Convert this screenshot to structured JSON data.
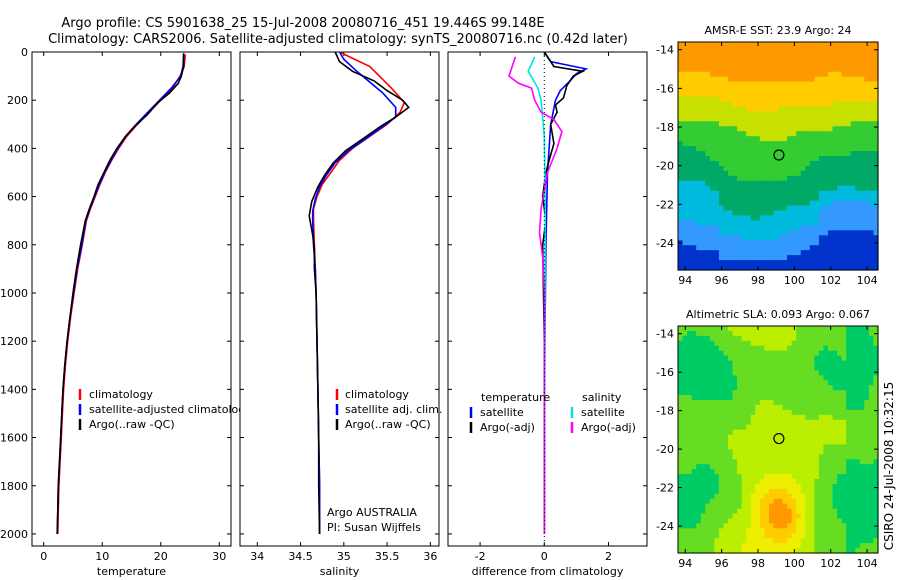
{
  "title_line1": "Argo profile: CS 5901638_25 15-Jul-2008 20080716_451 19.446S 99.148E",
  "title_line2": "Climatology: CARS2006. Satellite-adjusted climatology: synTS_20080716.nc (0.42d later)",
  "footer_vertical": "CSIRO 24-Jul-2008 10:32:15",
  "colors": {
    "climatology": "#ff0000",
    "satellite": "#0000ff",
    "argo": "#000000",
    "sal_satellite": "#00e5e5",
    "sal_argo": "#ff00ff"
  },
  "chart_data": [
    {
      "type": "line",
      "id": "temperature",
      "xlabel": "temperature",
      "xlim": [
        -2,
        32
      ],
      "ylim": [
        2050,
        0
      ],
      "xticks": [
        "0",
        "10",
        "20",
        "30"
      ],
      "yticks": [
        "0",
        "200",
        "400",
        "600",
        "800",
        "1000",
        "1200",
        "1400",
        "1600",
        "1800",
        "2000"
      ],
      "legend": [
        "climatology",
        "satellite-adjusted climatology",
        "Argo(..raw -QC)"
      ],
      "series": [
        {
          "name": "climatology",
          "points": [
            [
              24.2,
              10
            ],
            [
              24.0,
              60
            ],
            [
              23.3,
              100
            ],
            [
              22,
              150
            ],
            [
              20,
              200
            ],
            [
              18,
              250
            ],
            [
              16,
              300
            ],
            [
              14.2,
              350
            ],
            [
              12.8,
              400
            ],
            [
              11.6,
              450
            ],
            [
              10.5,
              500
            ],
            [
              9.6,
              550
            ],
            [
              8.8,
              600
            ],
            [
              8.0,
              650
            ],
            [
              7.3,
              700
            ],
            [
              6.6,
              800
            ],
            [
              5.8,
              900
            ],
            [
              5.2,
              1000
            ],
            [
              4.6,
              1100
            ],
            [
              4.1,
              1200
            ],
            [
              3.7,
              1300
            ],
            [
              3.4,
              1400
            ],
            [
              3.2,
              1500
            ],
            [
              3.0,
              1600
            ],
            [
              2.8,
              1700
            ],
            [
              2.6,
              1800
            ],
            [
              2.5,
              1900
            ],
            [
              2.4,
              2000
            ]
          ]
        },
        {
          "name": "satellite-adjusted climatology",
          "points": [
            [
              23.9,
              10
            ],
            [
              23.8,
              60
            ],
            [
              23.4,
              100
            ],
            [
              21.8,
              150
            ],
            [
              19.8,
              200
            ],
            [
              17.8,
              250
            ],
            [
              15.8,
              300
            ],
            [
              14.0,
              350
            ],
            [
              12.7,
              400
            ],
            [
              11.5,
              450
            ],
            [
              10.4,
              500
            ],
            [
              9.5,
              550
            ],
            [
              8.7,
              600
            ],
            [
              7.9,
              650
            ],
            [
              7.2,
              700
            ],
            [
              6.5,
              800
            ],
            [
              5.7,
              900
            ],
            [
              5.1,
              1000
            ],
            [
              4.5,
              1100
            ],
            [
              4.0,
              1200
            ],
            [
              3.6,
              1300
            ],
            [
              3.3,
              1400
            ],
            [
              3.1,
              1500
            ],
            [
              2.9,
              1600
            ],
            [
              2.7,
              1700
            ],
            [
              2.5,
              1800
            ],
            [
              2.4,
              1900
            ],
            [
              2.3,
              2000
            ]
          ]
        },
        {
          "name": "Argo(..raw -QC)",
          "points": [
            [
              23.9,
              5
            ],
            [
              23.9,
              60
            ],
            [
              23.5,
              100
            ],
            [
              23,
              130
            ],
            [
              21.5,
              170
            ],
            [
              19.5,
              210
            ],
            [
              17.7,
              260
            ],
            [
              15.5,
              310
            ],
            [
              14,
              350
            ],
            [
              12.5,
              400
            ],
            [
              11.3,
              450
            ],
            [
              10.3,
              500
            ],
            [
              9.3,
              550
            ],
            [
              8.6,
              600
            ],
            [
              7.8,
              650
            ],
            [
              7.1,
              700
            ],
            [
              6.3,
              800
            ],
            [
              5.6,
              900
            ],
            [
              5.0,
              1000
            ],
            [
              4.5,
              1100
            ],
            [
              4.0,
              1200
            ],
            [
              3.6,
              1300
            ],
            [
              3.3,
              1400
            ],
            [
              3.1,
              1500
            ],
            [
              2.9,
              1600
            ],
            [
              2.7,
              1700
            ],
            [
              2.5,
              1800
            ],
            [
              2.4,
              1900
            ],
            [
              2.3,
              2000
            ]
          ]
        }
      ]
    },
    {
      "type": "line",
      "id": "salinity",
      "xlabel": "salinity",
      "xlim": [
        33.8,
        36.1
      ],
      "ylim": [
        2050,
        0
      ],
      "xticks": [
        "34",
        "34.5",
        "35",
        "35.5",
        "36"
      ],
      "legend": [
        "climatology",
        "satellite adj. clim.",
        "Argo(..raw -QC)"
      ],
      "annotation": [
        "Argo AUSTRALIA",
        "PI: Susan Wijffels"
      ],
      "series": [
        {
          "name": "climatology",
          "points": [
            [
              34.95,
              0
            ],
            [
              35.3,
              60
            ],
            [
              35.55,
              150
            ],
            [
              35.7,
              210
            ],
            [
              35.65,
              250
            ],
            [
              35.5,
              300
            ],
            [
              35.3,
              350
            ],
            [
              35.1,
              400
            ],
            [
              34.95,
              450
            ],
            [
              34.85,
              500
            ],
            [
              34.75,
              550
            ],
            [
              34.69,
              600
            ],
            [
              34.65,
              650
            ],
            [
              34.65,
              700
            ],
            [
              34.66,
              800
            ],
            [
              34.67,
              900
            ],
            [
              34.68,
              1000
            ],
            [
              34.69,
              1200
            ],
            [
              34.7,
              1400
            ],
            [
              34.71,
              1600
            ],
            [
              34.72,
              1800
            ],
            [
              34.72,
              2000
            ]
          ]
        },
        {
          "name": "satellite adj. clim.",
          "points": [
            [
              34.95,
              0
            ],
            [
              35.0,
              30
            ],
            [
              35.15,
              80
            ],
            [
              35.45,
              170
            ],
            [
              35.6,
              230
            ],
            [
              35.6,
              270
            ],
            [
              35.45,
              310
            ],
            [
              35.25,
              360
            ],
            [
              35.05,
              410
            ],
            [
              34.9,
              460
            ],
            [
              34.8,
              510
            ],
            [
              34.72,
              560
            ],
            [
              34.67,
              610
            ],
            [
              34.64,
              660
            ],
            [
              34.64,
              700
            ],
            [
              34.65,
              800
            ],
            [
              34.67,
              900
            ],
            [
              34.68,
              1000
            ],
            [
              34.69,
              1200
            ],
            [
              34.7,
              1400
            ],
            [
              34.71,
              1600
            ],
            [
              34.72,
              1800
            ],
            [
              34.72,
              2000
            ]
          ]
        },
        {
          "name": "Argo(..raw -QC)",
          "points": [
            [
              34.9,
              0
            ],
            [
              34.95,
              40
            ],
            [
              35.1,
              80
            ],
            [
              35.35,
              120
            ],
            [
              35.5,
              160
            ],
            [
              35.68,
              200
            ],
            [
              35.75,
              230
            ],
            [
              35.6,
              270
            ],
            [
              35.42,
              310
            ],
            [
              35.22,
              360
            ],
            [
              35.02,
              410
            ],
            [
              34.88,
              460
            ],
            [
              34.78,
              510
            ],
            [
              34.7,
              560
            ],
            [
              34.63,
              620
            ],
            [
              34.6,
              680
            ],
            [
              34.64,
              760
            ],
            [
              34.66,
              820
            ],
            [
              34.66,
              900
            ],
            [
              34.68,
              1000
            ],
            [
              34.69,
              1200
            ],
            [
              34.7,
              1400
            ],
            [
              34.71,
              1600
            ],
            [
              34.71,
              1800
            ],
            [
              34.72,
              2000
            ]
          ]
        }
      ]
    },
    {
      "type": "line",
      "id": "difference",
      "xlabel": "difference from climatology",
      "xlim": [
        -3,
        3.2
      ],
      "ylim": [
        2050,
        0
      ],
      "xticks": [
        "-2",
        "0",
        "2"
      ],
      "legend_groups": [
        {
          "title": "temperature",
          "items": [
            "satellite",
            "Argo(-adj)"
          ]
        },
        {
          "title": "salinity",
          "items": [
            "satellite",
            "Argo(-adj)"
          ]
        }
      ],
      "series": [
        {
          "name": "temperature satellite",
          "points": [
            [
              0,
              0
            ],
            [
              0.2,
              40
            ],
            [
              1.3,
              70
            ],
            [
              1.0,
              90
            ],
            [
              0.8,
              120
            ],
            [
              0.5,
              160
            ],
            [
              0.35,
              200
            ],
            [
              0.2,
              300
            ],
            [
              0.1,
              500
            ],
            [
              0.05,
              800
            ],
            [
              0.02,
              1200
            ],
            [
              0,
              2000
            ]
          ]
        },
        {
          "name": "temperature Argo(-adj)",
          "points": [
            [
              0,
              0
            ],
            [
              0.3,
              60
            ],
            [
              1.2,
              80
            ],
            [
              0.9,
              100
            ],
            [
              0.7,
              140
            ],
            [
              0.6,
              190
            ],
            [
              0.35,
              220
            ],
            [
              0.4,
              250
            ],
            [
              0.2,
              300
            ],
            [
              0.3,
              380
            ],
            [
              0.15,
              450
            ],
            [
              0.05,
              500
            ],
            [
              -0.05,
              600
            ],
            [
              0.05,
              700
            ],
            [
              -0.05,
              800
            ],
            [
              0,
              1200
            ],
            [
              0,
              2000
            ]
          ]
        },
        {
          "name": "salinity satellite",
          "points": [
            [
              -0.3,
              20
            ],
            [
              -0.5,
              80
            ],
            [
              -0.2,
              150
            ],
            [
              -0.1,
              200
            ],
            [
              0.0,
              350
            ],
            [
              0.02,
              500
            ],
            [
              0.03,
              700
            ],
            [
              0.02,
              1000
            ],
            [
              0,
              2000
            ]
          ]
        },
        {
          "name": "salinity Argo(-adj)",
          "points": [
            [
              -0.9,
              20
            ],
            [
              -1.1,
              100
            ],
            [
              -0.8,
              130
            ],
            [
              -0.4,
              150
            ],
            [
              -0.3,
              200
            ],
            [
              -0.1,
              250
            ],
            [
              0.3,
              280
            ],
            [
              0.55,
              330
            ],
            [
              0.4,
              400
            ],
            [
              0.1,
              500
            ],
            [
              -0.1,
              650
            ],
            [
              -0.15,
              750
            ],
            [
              -0.05,
              850
            ],
            [
              0,
              1000
            ],
            [
              0,
              1500
            ],
            [
              0,
              2000
            ]
          ]
        }
      ]
    },
    {
      "type": "heatmap",
      "id": "amsr-sst",
      "title": "AMSR-E SST: 23.9 Argo: 24",
      "xlim": [
        93.6,
        104.6
      ],
      "ylim": [
        -25.4,
        -13.6
      ],
      "xticks": [
        "94",
        "96",
        "98",
        "100",
        "102",
        "104"
      ],
      "yticks": [
        "-14",
        "-16",
        "-18",
        "-20",
        "-22",
        "-24"
      ],
      "marker": [
        99.15,
        -19.45
      ],
      "palette": [
        "#ff9900",
        "#ffcc00",
        "#c8e000",
        "#33cc33",
        "#00aa66",
        "#00bbdd",
        "#3399ff",
        "#0033cc"
      ]
    },
    {
      "type": "heatmap",
      "id": "altimetric-sla",
      "title": "Altimetric SLA: 0.093 Argo: 0.067",
      "xlim": [
        93.6,
        104.6
      ],
      "ylim": [
        -25.4,
        -13.6
      ],
      "xticks": [
        "94",
        "96",
        "98",
        "100",
        "102",
        "104"
      ],
      "yticks": [
        "-14",
        "-16",
        "-18",
        "-20",
        "-22",
        "-24"
      ],
      "marker": [
        99.15,
        -19.45
      ],
      "palette": [
        "#00cc66",
        "#66dd22",
        "#bbee00",
        "#eeee00",
        "#ffcc00",
        "#ff9900"
      ]
    }
  ]
}
